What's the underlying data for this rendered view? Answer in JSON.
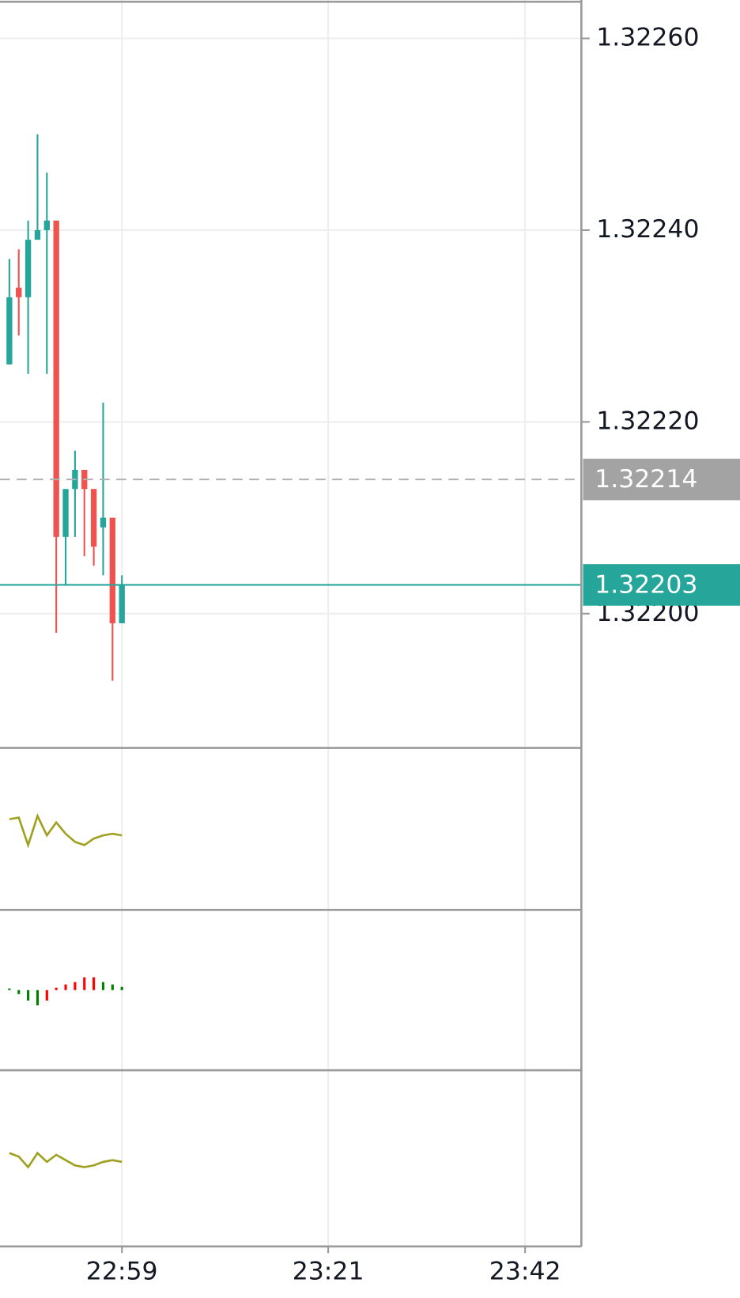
{
  "chart_data": [
    {
      "type": "candlestick",
      "x": [
        "22:47",
        "22:48",
        "22:49",
        "22:50",
        "22:51",
        "22:52",
        "22:53",
        "22:54",
        "22:55",
        "22:56",
        "22:57",
        "22:58",
        "22:59"
      ],
      "open": [
        1.32226,
        1.32234,
        1.32233,
        1.32239,
        1.3224,
        1.32241,
        1.32208,
        1.32213,
        1.32215,
        1.32213,
        1.32209,
        1.3221,
        1.32199
      ],
      "high": [
        1.32237,
        1.32238,
        1.32241,
        1.3225,
        1.32246,
        1.32241,
        1.32213,
        1.32217,
        1.32215,
        1.32213,
        1.32222,
        1.3221,
        1.32204
      ],
      "low": [
        1.32226,
        1.32229,
        1.32225,
        1.32239,
        1.32225,
        1.32198,
        1.32203,
        1.32208,
        1.32206,
        1.32205,
        1.32204,
        1.32193,
        1.32199
      ],
      "close": [
        1.32233,
        1.32233,
        1.32239,
        1.3224,
        1.32241,
        1.32208,
        1.32213,
        1.32215,
        1.32213,
        1.32207,
        1.3221,
        1.32199,
        1.32203
      ],
      "up_color": "#26a69a",
      "down_color": "#ef5350",
      "xlim": [
        "22:46",
        "23:48"
      ],
      "xticks": [
        "22:59",
        "23:21",
        "23:42"
      ],
      "ylim": [
        1.32186,
        1.32264
      ],
      "yticks": [
        {
          "value": 1.322,
          "label": "1.32200"
        },
        {
          "value": 1.3222,
          "label": "1.32220"
        },
        {
          "value": 1.3224,
          "label": "1.32240"
        },
        {
          "value": 1.3226,
          "label": "1.32260"
        }
      ],
      "prev_price": 1.32214,
      "last_price": 1.32203,
      "grid": true
    },
    {
      "type": "line",
      "color": "#a0a020",
      "ylim": [
        0,
        100
      ],
      "values": [
        56,
        57,
        40,
        58,
        46,
        54,
        47,
        42,
        40,
        44,
        46,
        47,
        46
      ]
    },
    {
      "type": "histogram",
      "ylim": [
        -10,
        10
      ],
      "values": [
        0.2,
        -0.5,
        -1.3,
        -1.9,
        -1.3,
        0.3,
        0.7,
        1.0,
        1.6,
        1.6,
        1.0,
        0.7,
        0.4
      ],
      "colors": [
        "#008000",
        "#008000",
        "#008000",
        "#008000",
        "#ff0000",
        "#ff0000",
        "#ff0000",
        "#ff0000",
        "#ff0000",
        "#ff0000",
        "#008000",
        "#008000",
        "#008000"
      ]
    },
    {
      "type": "line",
      "color": "#a0a020",
      "ylim": [
        0,
        100
      ],
      "values": [
        53,
        51,
        45,
        53,
        48,
        52,
        49,
        46,
        45,
        46,
        48,
        49,
        48
      ]
    }
  ]
}
